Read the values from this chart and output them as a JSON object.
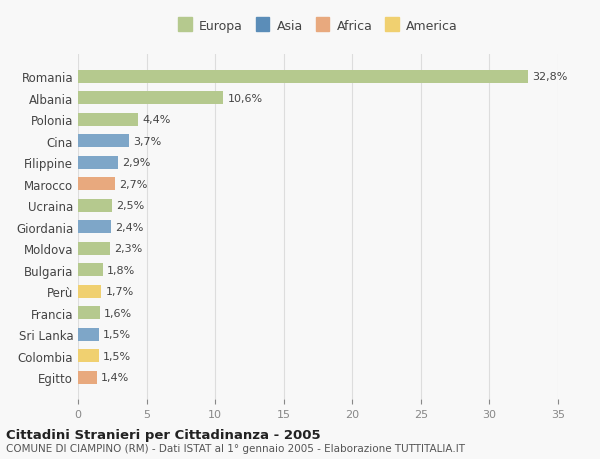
{
  "categories": [
    "Romania",
    "Albania",
    "Polonia",
    "Cina",
    "Filippine",
    "Marocco",
    "Ucraina",
    "Giordania",
    "Moldova",
    "Bulgaria",
    "Perù",
    "Francia",
    "Sri Lanka",
    "Colombia",
    "Egitto"
  ],
  "values": [
    32.8,
    10.6,
    4.4,
    3.7,
    2.9,
    2.7,
    2.5,
    2.4,
    2.3,
    1.8,
    1.7,
    1.6,
    1.5,
    1.5,
    1.4
  ],
  "labels": [
    "32,8%",
    "10,6%",
    "4,4%",
    "3,7%",
    "2,9%",
    "2,7%",
    "2,5%",
    "2,4%",
    "2,3%",
    "1,8%",
    "1,7%",
    "1,6%",
    "1,5%",
    "1,5%",
    "1,4%"
  ],
  "continents": [
    "Europa",
    "Europa",
    "Europa",
    "Asia",
    "Asia",
    "Africa",
    "Europa",
    "Asia",
    "Europa",
    "Europa",
    "America",
    "Europa",
    "Asia",
    "America",
    "Africa"
  ],
  "colors": {
    "Europa": "#b5c98e",
    "Asia": "#7ea6c8",
    "Africa": "#e8a97e",
    "America": "#f0d070"
  },
  "legend_colors": {
    "Europa": "#b5c98e",
    "Asia": "#5b8db8",
    "Africa": "#e8a97e",
    "America": "#f0d070"
  },
  "xlim": [
    0,
    35
  ],
  "xticks": [
    0,
    5,
    10,
    15,
    20,
    25,
    30,
    35
  ],
  "title": "Cittadini Stranieri per Cittadinanza - 2005",
  "subtitle": "COMUNE DI CIAMPINO (RM) - Dati ISTAT al 1° gennaio 2005 - Elaborazione TUTTITALIA.IT",
  "background_color": "#f8f8f8",
  "bar_height": 0.6,
  "legend_order": [
    "Europa",
    "Asia",
    "Africa",
    "America"
  ]
}
